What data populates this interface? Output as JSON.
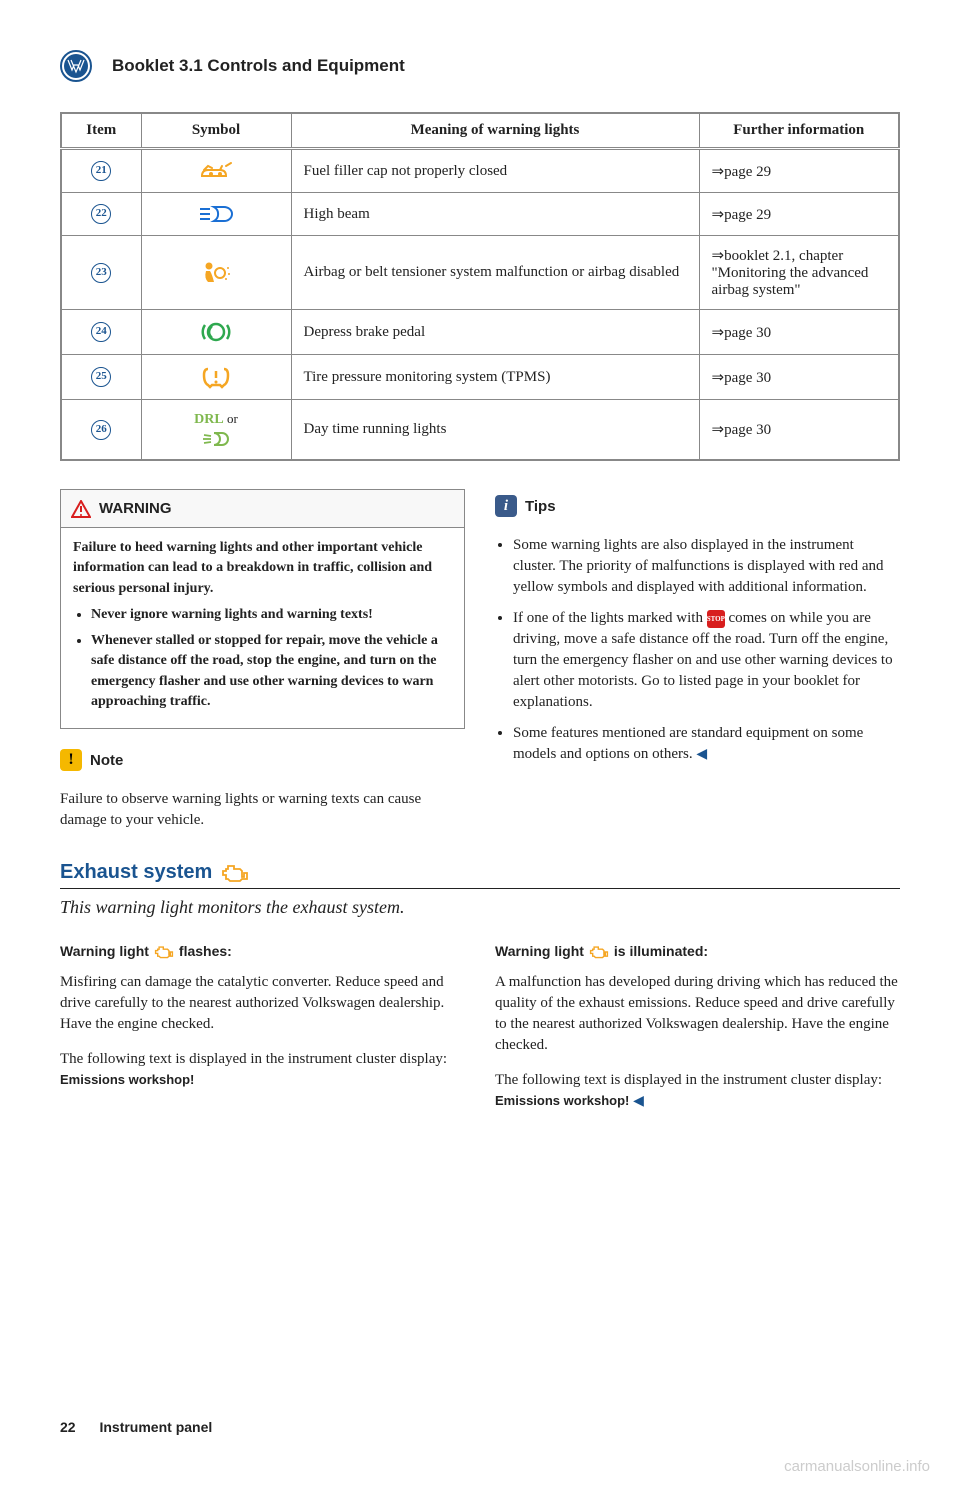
{
  "header": {
    "booklet_title": "Booklet 3.1  Controls and Equipment"
  },
  "table": {
    "headers": {
      "item": "Item",
      "symbol": "Symbol",
      "meaning": "Meaning of warning lights",
      "info": "Further information"
    },
    "rows": [
      {
        "item": "21",
        "symbol_color": "#f5a623",
        "meaning": "Fuel filler cap not properly closed",
        "info": "⇒page 29"
      },
      {
        "item": "22",
        "symbol_color": "#1a6fd4",
        "meaning": "High beam",
        "info": "⇒page 29"
      },
      {
        "item": "23",
        "symbol_color": "#f5a623",
        "meaning": "Airbag or belt tensioner system malfunction or airbag disabled",
        "info": "⇒booklet 2.1, chapter \"Monitoring the advanced airbag system\""
      },
      {
        "item": "24",
        "symbol_color": "#2fa84f",
        "meaning": "Depress brake pedal",
        "info": "⇒page 30"
      },
      {
        "item": "25",
        "symbol_color": "#f5a623",
        "meaning": "Tire pressure monitoring system (TPMS)",
        "info": "⇒page 30"
      },
      {
        "item": "26",
        "symbol_text_top": "DRL",
        "symbol_text_join": " or",
        "symbol_color": "#7fb84e",
        "meaning": "Day time running lights",
        "info": "⇒page 30"
      }
    ]
  },
  "warning_box": {
    "label": "WARNING",
    "intro": "Failure to heed warning lights and other important vehicle information can lead to a breakdown in traffic, collision and serious personal injury.",
    "bullets": [
      "Never ignore warning lights and warning texts!",
      "Whenever stalled or stopped for repair, move the vehicle a safe distance off the road, stop the engine, and turn on the emergency flasher and use other warning devices to warn approaching traffic."
    ]
  },
  "note": {
    "label": "Note",
    "text": "Failure to observe warning lights or warning texts can cause damage to your vehicle."
  },
  "tips": {
    "label": "Tips",
    "stop_badge": "STOP",
    "bullets": [
      "Some warning lights are also displayed in the instrument cluster. The priority of malfunctions is displayed with red and yellow symbols and displayed with additional information.",
      "If one of the lights marked with {STOP} comes on while you are driving, move a safe distance off the road. Turn off the engine, turn the emergency flasher on and use other warning devices to alert other motorists. Go to listed page in your booklet for explanations.",
      "Some features mentioned are standard equipment on some models and options on others."
    ]
  },
  "exhaust": {
    "heading": "Exhaust system",
    "subtitle": "This warning light monitors the exhaust system.",
    "left": {
      "h": "Warning light",
      "h2": "flashes:",
      "p1": "Misfiring can damage the catalytic converter. Reduce speed and drive carefully to the nearest authorized Volkswagen dealership. Have the engine checked.",
      "p2a": "The following text is displayed in the instrument cluster display: ",
      "p2b": "Emissions workshop!"
    },
    "right": {
      "h": "Warning light",
      "h2": "is illuminated:",
      "p1": "A malfunction has developed during driving which has reduced the quality of the exhaust emissions. Reduce speed and drive carefully to the nearest authorized Volkswagen dealership. Have the engine checked.",
      "p2a": "The following text is displayed in the instrument cluster display: ",
      "p2b": "Emissions workshop!"
    }
  },
  "footer": {
    "page_num": "22",
    "section": "Instrument panel"
  },
  "watermark": "carmanualsonline.info",
  "colors": {
    "vw_blue": "#1a5490",
    "amber": "#f5a623",
    "green": "#2fa84f",
    "drl_green": "#7fb84e",
    "highbeam_blue": "#1a6fd4",
    "note_bg": "#f5b800",
    "tips_bg": "#3a5a8a",
    "stop_red": "#d81e1e"
  }
}
